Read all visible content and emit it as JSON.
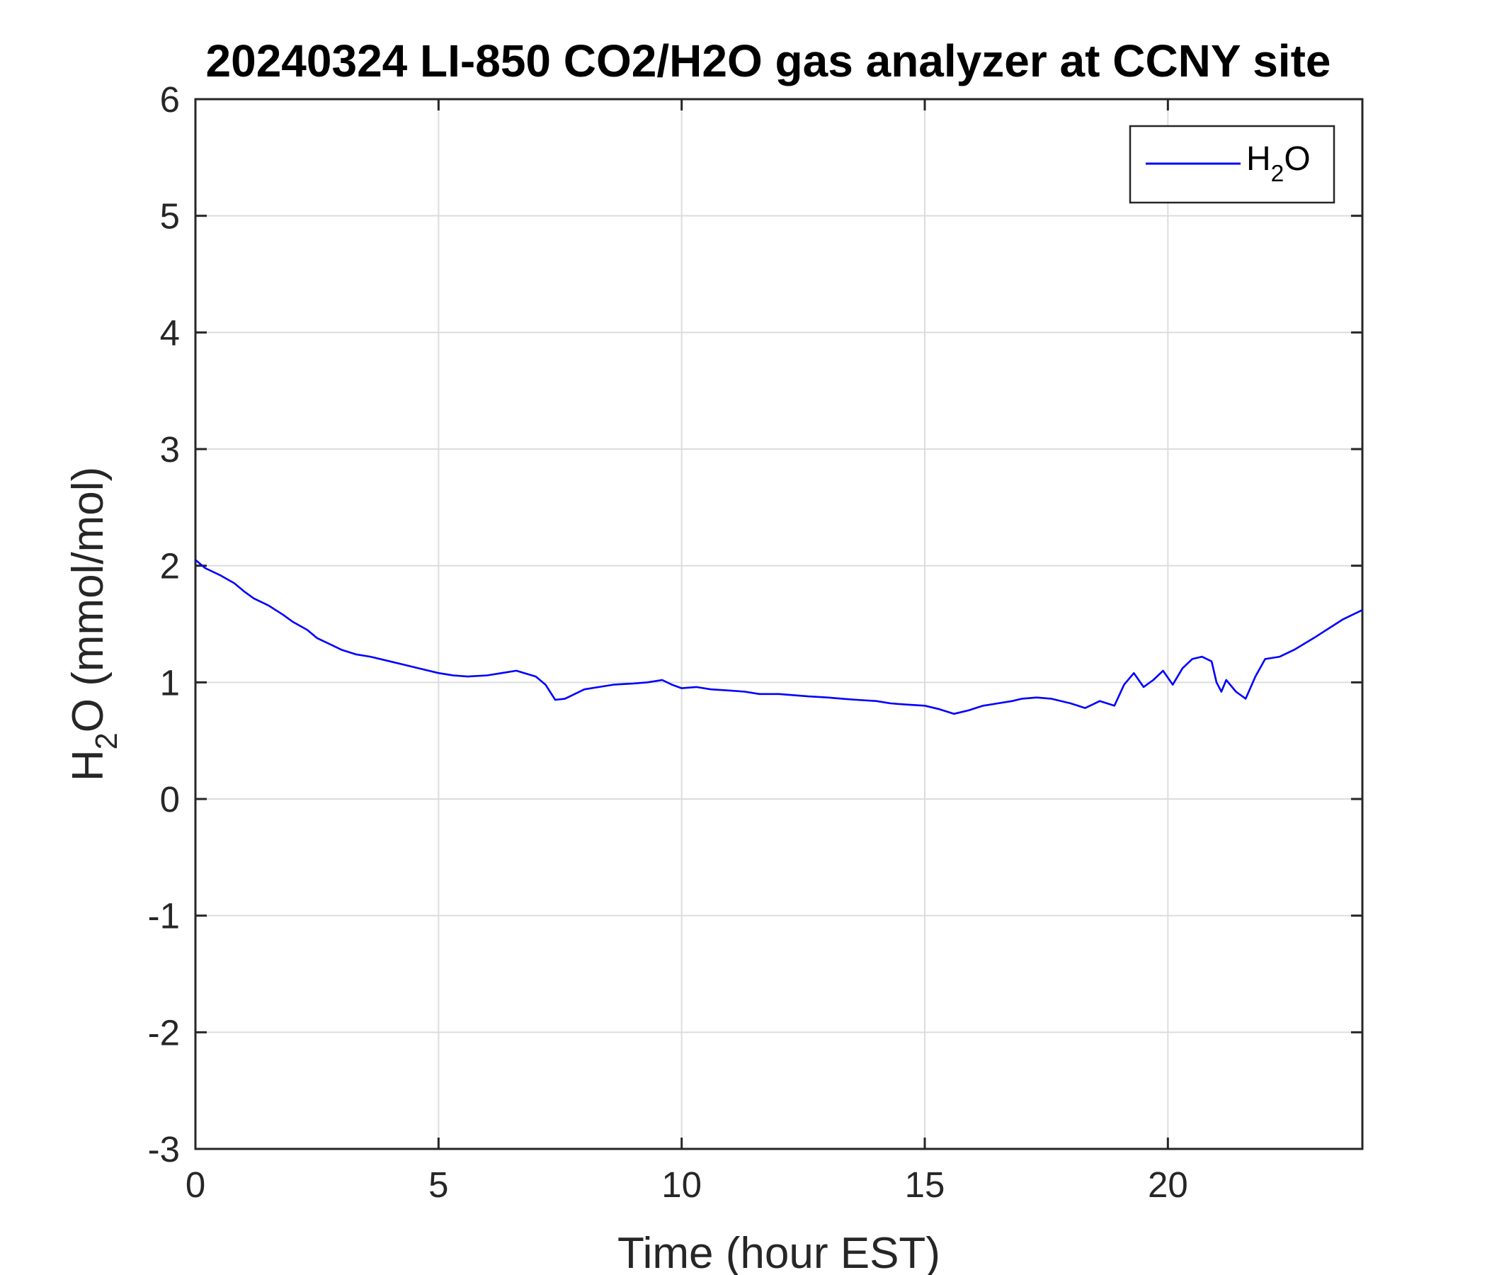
{
  "chart_data": {
    "type": "line",
    "title": "20240324 LI-850 CO2/H2O gas analyzer at CCNY site",
    "xlabel": "Time (hour EST)",
    "ylabel": {
      "main": "H",
      "sub": "2",
      "rest": "O (mmol/mol)"
    },
    "xlim": [
      0,
      24
    ],
    "ylim": [
      -3,
      6
    ],
    "xticks": [
      0,
      5,
      10,
      15,
      20
    ],
    "yticks": [
      -3,
      -2,
      -1,
      0,
      1,
      2,
      3,
      4,
      5,
      6
    ],
    "grid": true,
    "legend": {
      "placement": "top-right",
      "entries": [
        {
          "main": "H",
          "sub": "2",
          "rest": "O"
        }
      ]
    },
    "series": [
      {
        "color": "#0000ff",
        "x": [
          0,
          0.2,
          0.5,
          0.8,
          1.0,
          1.2,
          1.5,
          1.8,
          2.0,
          2.3,
          2.5,
          2.8,
          3.0,
          3.3,
          3.6,
          4.0,
          4.3,
          4.6,
          5.0,
          5.3,
          5.6,
          6.0,
          6.3,
          6.6,
          7.0,
          7.2,
          7.4,
          7.6,
          7.8,
          8.0,
          8.3,
          8.6,
          9.0,
          9.3,
          9.6,
          9.8,
          10.0,
          10.3,
          10.6,
          11.0,
          11.3,
          11.6,
          12.0,
          12.3,
          12.6,
          13.0,
          13.3,
          13.6,
          14.0,
          14.3,
          14.6,
          15.0,
          15.3,
          15.6,
          15.9,
          16.2,
          16.5,
          16.8,
          17.0,
          17.3,
          17.6,
          18.0,
          18.3,
          18.6,
          18.9,
          19.1,
          19.3,
          19.5,
          19.7,
          19.9,
          20.1,
          20.3,
          20.5,
          20.7,
          20.9,
          21.0,
          21.1,
          21.2,
          21.4,
          21.6,
          21.8,
          22.0,
          22.3,
          22.6,
          23.0,
          23.3,
          23.6,
          24.0
        ],
        "y": [
          2.05,
          1.98,
          1.92,
          1.85,
          1.78,
          1.72,
          1.66,
          1.58,
          1.52,
          1.45,
          1.38,
          1.32,
          1.28,
          1.24,
          1.22,
          1.18,
          1.15,
          1.12,
          1.08,
          1.06,
          1.05,
          1.06,
          1.08,
          1.1,
          1.05,
          0.98,
          0.85,
          0.86,
          0.9,
          0.94,
          0.96,
          0.98,
          0.99,
          1.0,
          1.02,
          0.98,
          0.95,
          0.96,
          0.94,
          0.93,
          0.92,
          0.9,
          0.9,
          0.89,
          0.88,
          0.87,
          0.86,
          0.85,
          0.84,
          0.82,
          0.81,
          0.8,
          0.77,
          0.73,
          0.76,
          0.8,
          0.82,
          0.84,
          0.86,
          0.87,
          0.86,
          0.82,
          0.78,
          0.84,
          0.8,
          0.98,
          1.08,
          0.96,
          1.02,
          1.1,
          0.98,
          1.12,
          1.2,
          1.22,
          1.18,
          1.0,
          0.92,
          1.02,
          0.92,
          0.86,
          1.05,
          1.2,
          1.22,
          1.28,
          1.38,
          1.46,
          1.54,
          1.62
        ]
      }
    ]
  }
}
